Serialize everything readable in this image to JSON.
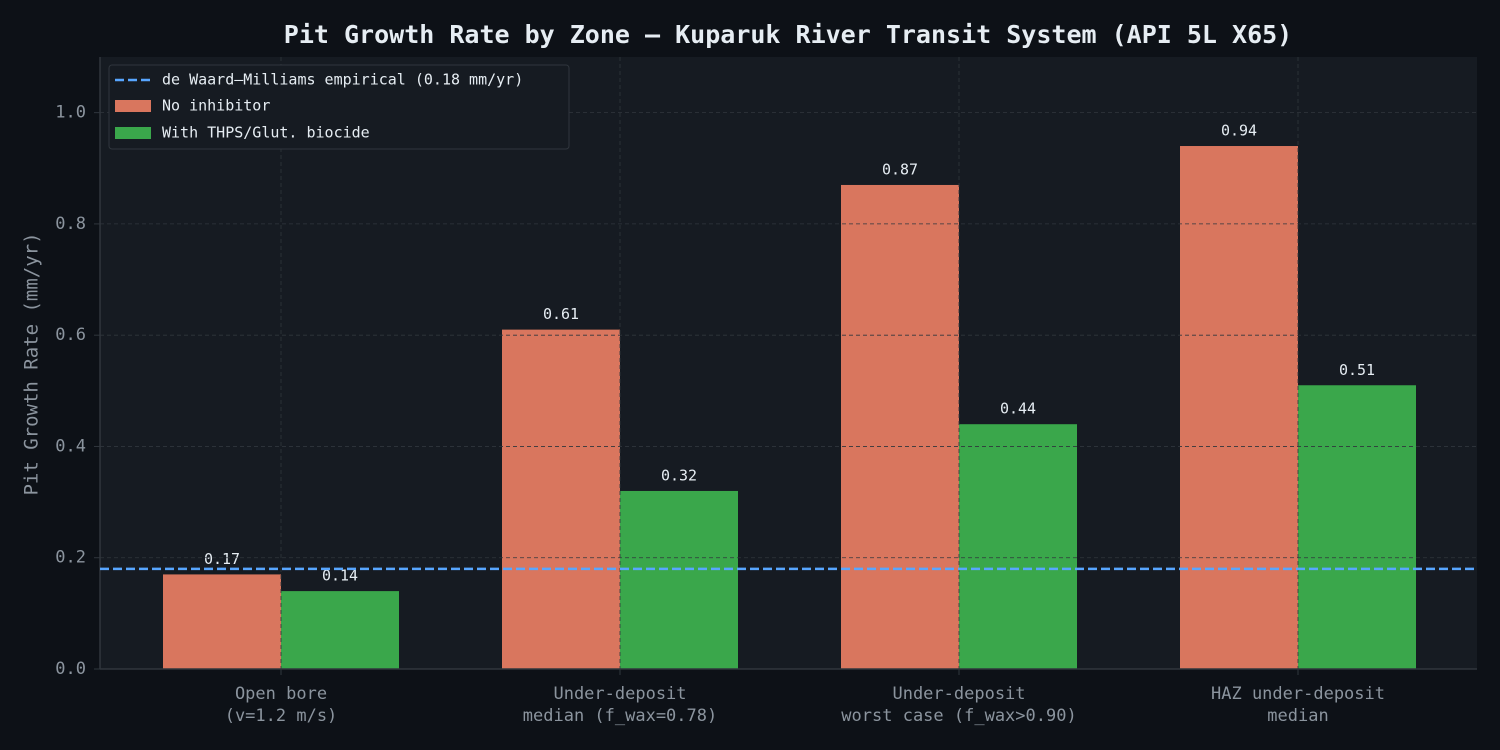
{
  "chart_data": {
    "type": "bar",
    "title": "Pit Growth Rate by Zone — Kuparuk River Transit System (API 5L X65)",
    "y_label": "Pit Growth Rate (mm/yr)",
    "categories": [
      "Open bore\n(v=1.2 m/s)",
      "Under-deposit\nmedian (f_wax=0.78)",
      "Under-deposit\nworst case (f_wax>0.90)",
      "HAZ under-deposit\nmedian"
    ],
    "series": [
      {
        "name": "No inhibitor",
        "color": "#d9765e",
        "values": [
          0.17,
          0.61,
          0.87,
          0.94
        ]
      },
      {
        "name": "With THPS/Glut. biocide",
        "color": "#3aa74b",
        "values": [
          0.14,
          0.32,
          0.44,
          0.51
        ]
      }
    ],
    "reference_line": {
      "name": "de Waard–Milliams empirical (0.18 mm/yr)",
      "value": 0.18,
      "color": "#58a6ff"
    },
    "ylim": [
      0,
      1.1
    ],
    "yticks": [
      {
        "value": 0,
        "label": "0.0"
      },
      0.2,
      0.4,
      0.6,
      0.8,
      {
        "value": 1,
        "label": "1.0"
      }
    ],
    "grid": true,
    "legend": "upper left"
  }
}
